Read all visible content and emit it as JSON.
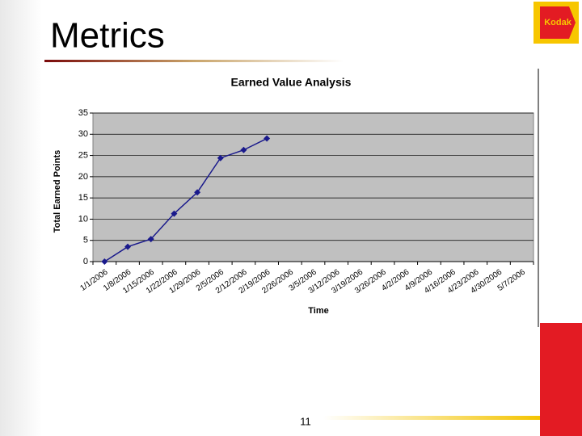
{
  "slide_title": "Metrics",
  "page_number": "11",
  "logo_text": "Kodak",
  "chart_data": {
    "type": "line",
    "title": "Earned Value Analysis",
    "x_label": "Time",
    "y_label": "Total Earned Points",
    "categories": [
      "1/1/2006",
      "1/8/2006",
      "1/15/2006",
      "1/22/2006",
      "1/29/2006",
      "2/5/2006",
      "2/12/2006",
      "2/19/2006",
      "2/26/2006",
      "3/5/2006",
      "3/12/2006",
      "3/19/2006",
      "3/26/2006",
      "4/2/2006",
      "4/9/2006",
      "4/16/2006",
      "4/23/2006",
      "4/30/2006",
      "5/7/2006"
    ],
    "series": [
      {
        "color": "#1a1a8c",
        "values": [
          0,
          3.5,
          5.3,
          11.3,
          16.3,
          24.4,
          26.3,
          29,
          null,
          null,
          null,
          null,
          null,
          null,
          null,
          null,
          null,
          null,
          null
        ]
      }
    ],
    "ylim": [
      0,
      35
    ],
    "yticks": [
      0,
      5,
      10,
      15,
      20,
      25,
      30,
      35
    ],
    "grid": true,
    "plot_background": "#c0c0c0"
  }
}
